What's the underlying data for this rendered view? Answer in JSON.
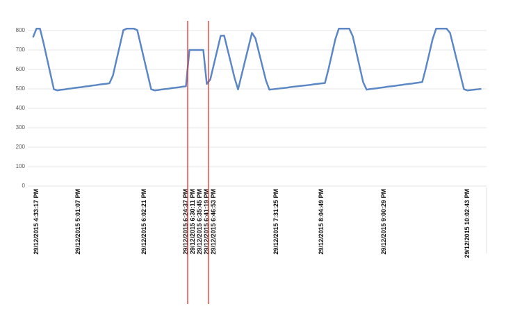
{
  "chart_data": {
    "type": "line",
    "color": "#5b87c5",
    "grid": true,
    "ylim": [
      0,
      800
    ],
    "yticks": [
      0,
      100,
      200,
      300,
      400,
      500,
      600,
      700,
      800
    ],
    "categories": [
      null,
      null,
      "29/12/2015 4:33:17 PM",
      null,
      null,
      null,
      null,
      null,
      null,
      null,
      null,
      null,
      null,
      null,
      "29/12/2015 5:01:07 PM",
      null,
      null,
      null,
      null,
      null,
      null,
      null,
      null,
      null,
      null,
      null,
      null,
      null,
      null,
      null,
      null,
      null,
      null,
      "29/12/2015 6:02:21 PM",
      null,
      null,
      null,
      null,
      null,
      null,
      null,
      null,
      null,
      null,
      null,
      "29/12/2015 6:24:37 PM",
      null,
      "29/12/2015 6:30:11 PM",
      null,
      "29/12/2015 6:35:45 PM",
      null,
      "29/12/2015 6:41:19 PM",
      null,
      "29/12/2015 6:46:53 PM",
      null,
      null,
      null,
      null,
      null,
      null,
      null,
      null,
      null,
      null,
      null,
      null,
      null,
      null,
      null,
      null,
      null,
      "29/12/2015 7:31:25 PM",
      null,
      null,
      null,
      null,
      null,
      null,
      null,
      null,
      null,
      null,
      null,
      null,
      "29/12/2015 8:04:49 PM",
      null,
      null,
      null,
      null,
      null,
      null,
      null,
      null,
      null,
      null,
      null,
      null,
      null,
      null,
      null,
      null,
      null,
      "29/12/2015 9:00:29 PM",
      null,
      null,
      null,
      null,
      null,
      null,
      null,
      null,
      null,
      null,
      null,
      null,
      null,
      null,
      null,
      null,
      null,
      null,
      null,
      null,
      null,
      null,
      null,
      "29/12/2015 10:02:43 PM",
      null,
      null,
      null,
      null
    ],
    "values": [
      null,
      765,
      810,
      810,
      738,
      658,
      578,
      498,
      492,
      495,
      497,
      500,
      502,
      505,
      507,
      509,
      512,
      514,
      517,
      519,
      522,
      524,
      526,
      529,
      569,
      647,
      724,
      802,
      810,
      810,
      810,
      802,
      726,
      650,
      574,
      498,
      492,
      494,
      497,
      499,
      501,
      504,
      506,
      508,
      511,
      513,
      700,
      700,
      700,
      700,
      700,
      525,
      548,
      623,
      698,
      773,
      774,
      701,
      629,
      556,
      497,
      570,
      643,
      715,
      788,
      760,
      688,
      617,
      545,
      496,
      498,
      500,
      502,
      504,
      506,
      509,
      511,
      513,
      515,
      517,
      519,
      521,
      524,
      526,
      528,
      530,
      600,
      678,
      756,
      810,
      810,
      810,
      810,
      771,
      692,
      613,
      534,
      496,
      499,
      501,
      503,
      506,
      508,
      511,
      513,
      515,
      518,
      520,
      523,
      525,
      527,
      530,
      532,
      535,
      604,
      680,
      757,
      810,
      810,
      810,
      810,
      788,
      716,
      643,
      571,
      498,
      492,
      494,
      496,
      498,
      500
    ]
  }
}
